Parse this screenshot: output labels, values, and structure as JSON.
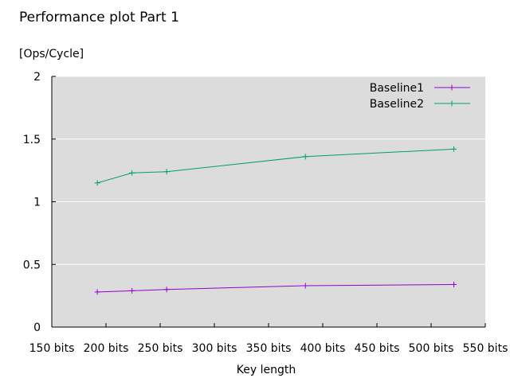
{
  "chart_data": {
    "type": "line",
    "title": "Performance plot Part 1",
    "ylabel": "[Ops/Cycle]",
    "xlabel": "Key length",
    "xlim": [
      150,
      550
    ],
    "ylim": [
      0,
      2
    ],
    "x_ticks": [
      150,
      200,
      250,
      300,
      350,
      400,
      450,
      500,
      550
    ],
    "x_tick_labels": [
      "150 bits",
      "200 bits",
      "250 bits",
      "300 bits",
      "350 bits",
      "400 bits",
      "450 bits",
      "500 bits",
      "550 bits"
    ],
    "y_ticks": [
      0,
      0.5,
      1,
      1.5,
      2
    ],
    "y_tick_labels": [
      "0",
      "0.5",
      "1",
      "1.5",
      "2"
    ],
    "grid": "horizontal",
    "background": "#dcdcdc",
    "legend_position": "top-right",
    "x": [
      192,
      224,
      256,
      384,
      521
    ],
    "series": [
      {
        "name": "Baseline1",
        "color": "#9400d3",
        "marker": "plus",
        "values": [
          0.28,
          0.29,
          0.3,
          0.33,
          0.34
        ]
      },
      {
        "name": "Baseline2",
        "color": "#009e73",
        "marker": "plus",
        "values": [
          1.15,
          1.23,
          1.24,
          1.36,
          1.42
        ]
      }
    ]
  }
}
